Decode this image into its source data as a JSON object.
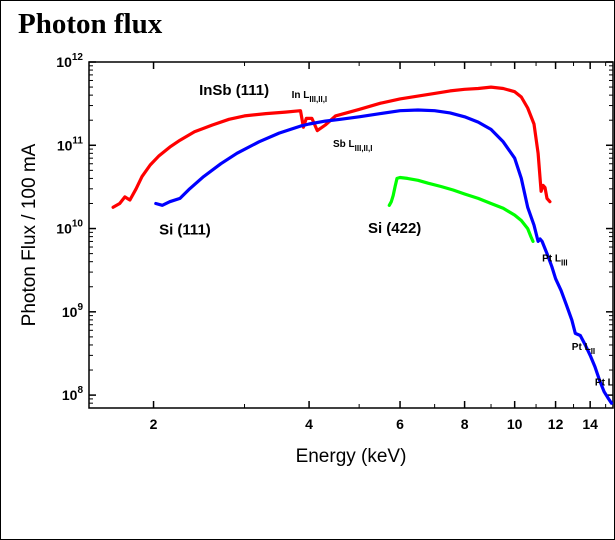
{
  "page": {
    "title": "Photon flux"
  },
  "chart_data": {
    "type": "line",
    "title": "",
    "xlabel": "Energy (keV)",
    "ylabel": "Photon Flux / 100 mA",
    "xscale": "log",
    "yscale": "log",
    "xlim": [
      1.5,
      15.5
    ],
    "ylim": [
      70000000,
      1000000000000
    ],
    "xticks": [
      {
        "value": 2,
        "label": "2"
      },
      {
        "value": 4,
        "label": "4"
      },
      {
        "value": 6,
        "label": "6"
      },
      {
        "value": 8,
        "label": "8"
      },
      {
        "value": 10,
        "label": "10"
      },
      {
        "value": 12,
        "label": "12"
      },
      {
        "value": 14,
        "label": "14"
      }
    ],
    "yticks": [
      {
        "value": 100000000,
        "base": "10",
        "exp": "8"
      },
      {
        "value": 1000000000,
        "base": "10",
        "exp": "9"
      },
      {
        "value": 10000000000,
        "base": "10",
        "exp": "10"
      },
      {
        "value": 100000000000,
        "base": "10",
        "exp": "11"
      },
      {
        "value": 1000000000000,
        "base": "10",
        "exp": "12"
      }
    ],
    "grid": false,
    "series": [
      {
        "name": "InSb (111)",
        "color": "#ff0000",
        "x": [
          1.67,
          1.72,
          1.76,
          1.8,
          1.85,
          1.9,
          1.97,
          2.05,
          2.15,
          2.25,
          2.4,
          2.6,
          2.8,
          3.0,
          3.3,
          3.6,
          3.85,
          3.9,
          3.95,
          4.05,
          4.15,
          4.3,
          4.5,
          5.0,
          5.5,
          6.0,
          6.5,
          7.0,
          7.5,
          8.0,
          8.5,
          9.0,
          9.5,
          10.0,
          10.3,
          10.6,
          10.9,
          11.1,
          11.25,
          11.35,
          11.45,
          11.55,
          11.7
        ],
        "y": [
          18000000000,
          20000000000,
          24000000000,
          22000000000,
          30000000000,
          42000000000,
          58000000000,
          75000000000,
          95000000000,
          115000000000,
          145000000000,
          175000000000,
          205000000000,
          225000000000,
          240000000000,
          250000000000,
          260000000000,
          165000000000,
          210000000000,
          210000000000,
          150000000000,
          175000000000,
          225000000000,
          270000000000,
          320000000000,
          360000000000,
          390000000000,
          420000000000,
          450000000000,
          470000000000,
          480000000000,
          500000000000,
          480000000000,
          440000000000,
          380000000000,
          280000000000,
          180000000000,
          80000000000,
          28000000000,
          33000000000,
          31000000000,
          23000000000,
          21000000000
        ]
      },
      {
        "name": "Si (111)",
        "color": "#0000ff",
        "x": [
          2.02,
          2.08,
          2.15,
          2.25,
          2.35,
          2.5,
          2.7,
          2.9,
          3.2,
          3.5,
          3.85,
          4.0,
          4.3,
          4.6,
          5.0,
          5.5,
          6.0,
          6.5,
          7.0,
          7.5,
          8.0,
          8.5,
          9.0,
          9.5,
          10.0,
          10.3,
          10.6,
          10.9,
          11.1,
          11.2,
          11.3,
          11.55,
          11.8,
          12.0,
          12.3,
          12.6,
          12.9,
          13.1,
          13.4,
          13.7,
          14.0,
          14.3,
          14.6,
          14.9,
          15.2,
          15.4
        ],
        "y": [
          20000000000,
          19000000000,
          21000000000,
          23000000000,
          30000000000,
          42000000000,
          60000000000,
          80000000000,
          110000000000,
          140000000000,
          170000000000,
          180000000000,
          195000000000,
          205000000000,
          220000000000,
          240000000000,
          260000000000,
          265000000000,
          260000000000,
          245000000000,
          220000000000,
          190000000000,
          155000000000,
          110000000000,
          70000000000,
          40000000000,
          18000000000,
          11000000000,
          7000000000,
          7500000000,
          7000000000,
          5000000000,
          3500000000,
          2500000000,
          1800000000,
          1200000000,
          800000000,
          550000000,
          520000000,
          400000000,
          300000000,
          220000000,
          150000000,
          110000000,
          90000000,
          80000000
        ]
      },
      {
        "name": "Si (422)",
        "color": "#00ff00",
        "x": [
          5.72,
          5.77,
          5.82,
          5.87,
          5.92,
          6.0,
          6.2,
          6.5,
          6.8,
          7.2,
          7.6,
          8.0,
          8.5,
          9.0,
          9.5,
          10.0,
          10.3,
          10.6,
          10.75,
          10.85
        ],
        "y": [
          19000000000,
          21000000000,
          25000000000,
          32000000000,
          40000000000,
          41000000000,
          40000000000,
          38000000000,
          35000000000,
          32000000000,
          29000000000,
          26000000000,
          23000000000,
          20000000000,
          17500000000,
          14500000000,
          12500000000,
          10000000000,
          8000000000,
          7000000000
        ]
      }
    ],
    "annotations": [
      {
        "text": "InSb (111)",
        "x": 2.45,
        "y": 400000000000,
        "size": "large"
      },
      {
        "text": "Si (111)",
        "x": 2.05,
        "y": 8500000000,
        "size": "large"
      },
      {
        "text": "Si (422)",
        "x": 5.2,
        "y": 8800000000,
        "size": "large"
      },
      {
        "text": "In L",
        "sub": "III,II,I",
        "x": 3.7,
        "y": 370000000000,
        "size": "small"
      },
      {
        "text": "Sb L",
        "sub": "III,II,I",
        "x": 4.45,
        "y": 95000000000,
        "size": "small"
      },
      {
        "text": "Pt L",
        "sub": "III",
        "x": 11.3,
        "y": 4000000000,
        "size": "small"
      },
      {
        "text": "Pt L",
        "sub": "II",
        "x": 12.9,
        "y": 350000000,
        "size": "small"
      },
      {
        "text": "Pt L",
        "sub": "I",
        "x": 14.3,
        "y": 130000000,
        "size": "small"
      }
    ]
  }
}
